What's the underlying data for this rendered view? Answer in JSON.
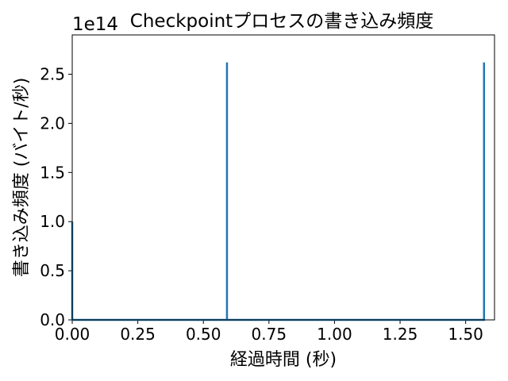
{
  "chart_data": {
    "type": "line",
    "title": "Checkpointプロセスの書き込み頻度",
    "xlabel": "経過時間 (秒)",
    "ylabel": "書き込み頻度 (バイト/秒)",
    "y_offset_label": "1e14",
    "xlim": [
      0.0,
      1.61
    ],
    "ylim": [
      0.0,
      2.9
    ],
    "x_ticks": [
      0.0,
      0.25,
      0.5,
      0.75,
      1.0,
      1.25,
      1.5
    ],
    "x_tick_labels": [
      "0.00",
      "0.25",
      "0.50",
      "0.75",
      "1.00",
      "1.25",
      "1.50"
    ],
    "y_ticks": [
      0.0,
      0.5,
      1.0,
      1.5,
      2.0,
      2.5
    ],
    "y_tick_labels": [
      "0.0",
      "0.5",
      "1.0",
      "1.5",
      "2.0",
      "2.5"
    ],
    "series_color": "#1f77b4",
    "series": [
      {
        "x": [
          0.0,
          0.0,
          0.0,
          0.59,
          0.59,
          0.59,
          1.57,
          1.57,
          1.57
        ],
        "y": [
          0.0,
          1.0,
          0.0,
          0.0,
          2.62,
          0.0,
          0.0,
          2.62,
          0.0
        ]
      }
    ],
    "grid": false
  }
}
